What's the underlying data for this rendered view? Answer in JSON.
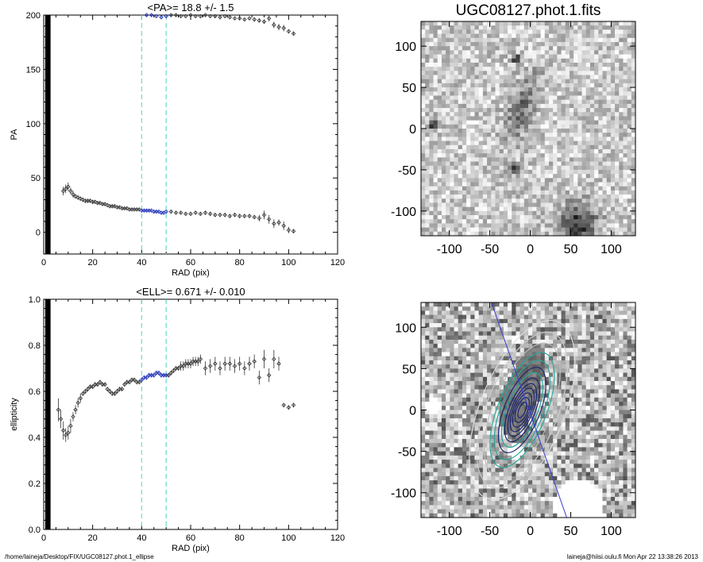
{
  "footer": {
    "path": "/home/laineja/Desktop/FIX/UGC08127.phot.1_ellipse",
    "user_time": "laineja@hiisi.oulu.fi  Mon Apr 22 13:38:26 2013"
  },
  "colors": {
    "axis": "#000000",
    "points": "#333333",
    "highlight": "#1f2fb8",
    "guide": "#66ddcc",
    "contour_teal": "#2aa59a",
    "contour_navy": "#1b2470",
    "pa_line": "#3a3ad0"
  },
  "chart_data": [
    {
      "type": "scatter",
      "title": "<PA>=  18.8 +/-   1.5",
      "xlabel": "RAD (pix)",
      "ylabel": "PA",
      "xlim": [
        0,
        120
      ],
      "ylim": [
        -20,
        200
      ],
      "xticks": [
        0,
        20,
        40,
        60,
        80,
        100,
        120
      ],
      "yticks": [
        0,
        50,
        100,
        150,
        200
      ],
      "guide_lines_x": [
        40,
        50
      ],
      "highlight_range_x": [
        40,
        50
      ],
      "series": [
        {
          "x": [
            8,
            9,
            10,
            11,
            12,
            13,
            14,
            15,
            16,
            17,
            18,
            19,
            20,
            21,
            22,
            23,
            24,
            25,
            26,
            27,
            28,
            29,
            30,
            31,
            32,
            33,
            34,
            35,
            36,
            37,
            38,
            39,
            40,
            41,
            42,
            43,
            44,
            45,
            46,
            47,
            48,
            49,
            50,
            52,
            54,
            56,
            58,
            60,
            62,
            64,
            66,
            68,
            70,
            72,
            74,
            76,
            78,
            80,
            82,
            84,
            86,
            88,
            90,
            92,
            94,
            96,
            98,
            100,
            102
          ],
          "y": [
            38,
            40,
            42,
            38,
            35,
            33,
            32,
            31,
            30,
            29,
            29,
            29,
            28,
            28,
            27,
            27,
            26,
            26,
            25,
            24,
            24,
            24,
            23,
            23,
            22,
            22,
            22,
            21,
            21,
            21,
            21,
            21,
            20,
            20,
            20,
            20,
            20,
            19,
            19,
            19,
            18,
            18,
            19,
            19,
            18,
            18,
            17,
            17,
            18,
            17,
            18,
            17,
            16,
            16,
            16,
            15,
            16,
            15,
            15,
            15,
            14,
            13,
            16,
            12,
            8,
            9,
            6,
            2,
            1
          ],
          "err": [
            4,
            4,
            4,
            3,
            3,
            2,
            2,
            2,
            2,
            2,
            2,
            2,
            2,
            1,
            1,
            1,
            1,
            1,
            1,
            1,
            1,
            1,
            1,
            1,
            1,
            1,
            1,
            1,
            1,
            1,
            1,
            1,
            1,
            1,
            1,
            1,
            1,
            1,
            1,
            1,
            1,
            1,
            1,
            1,
            1,
            1,
            1,
            1,
            1,
            1,
            2,
            2,
            2,
            2,
            2,
            2,
            2,
            2,
            2,
            2,
            2,
            3,
            4,
            4,
            4,
            3,
            4,
            3,
            2
          ]
        },
        {
          "x": [
            42,
            44,
            46,
            48,
            50,
            52,
            54,
            56,
            58,
            60,
            62,
            64,
            66,
            68,
            70,
            72,
            74,
            76,
            78,
            80,
            82,
            84,
            86,
            88,
            90,
            92,
            94,
            96,
            98,
            100,
            102
          ],
          "y": [
            200,
            200,
            199,
            198,
            199,
            200,
            200,
            199,
            199,
            200,
            199,
            199,
            200,
            199,
            199,
            198,
            199,
            198,
            197,
            197,
            196,
            197,
            196,
            195,
            194,
            197,
            191,
            189,
            188,
            185,
            183
          ],
          "err": [
            1,
            1,
            1,
            1,
            1,
            1,
            1,
            1,
            1,
            1,
            1,
            1,
            1,
            1,
            1,
            1,
            1,
            1,
            1,
            1,
            1,
            1,
            2,
            2,
            2,
            3,
            3,
            3,
            3,
            2,
            2
          ]
        }
      ]
    },
    {
      "type": "scatter",
      "title": "<ELL>= 0.671 +/-  0.010",
      "xlabel": "RAD (pix)",
      "ylabel": "ellipticity",
      "xlim": [
        0,
        120
      ],
      "ylim": [
        0,
        1
      ],
      "xticks": [
        0,
        20,
        40,
        60,
        80,
        100,
        120
      ],
      "yticks": [
        0.0,
        0.2,
        0.4,
        0.6,
        0.8,
        1.0
      ],
      "guide_lines_x": [
        40,
        50
      ],
      "highlight_range_x": [
        40,
        50
      ],
      "series": [
        {
          "x": [
            6,
            7,
            8,
            9,
            10,
            11,
            12,
            13,
            14,
            15,
            16,
            17,
            18,
            19,
            20,
            21,
            22,
            23,
            24,
            25,
            26,
            27,
            28,
            29,
            30,
            31,
            32,
            33,
            34,
            35,
            36,
            37,
            38,
            39,
            40,
            41,
            42,
            43,
            44,
            45,
            46,
            47,
            48,
            49,
            50,
            51,
            52,
            53,
            54,
            55,
            56,
            57,
            58,
            59,
            60,
            61,
            62,
            63,
            64,
            66,
            68,
            70,
            72,
            74,
            76,
            78,
            80,
            82,
            84,
            86,
            88,
            90,
            92,
            94,
            96,
            98,
            100,
            102
          ],
          "y": [
            0.52,
            0.48,
            0.43,
            0.41,
            0.42,
            0.45,
            0.49,
            0.52,
            0.55,
            0.57,
            0.59,
            0.6,
            0.61,
            0.62,
            0.62,
            0.63,
            0.63,
            0.64,
            0.63,
            0.63,
            0.61,
            0.6,
            0.59,
            0.59,
            0.6,
            0.61,
            0.61,
            0.63,
            0.64,
            0.64,
            0.65,
            0.65,
            0.64,
            0.64,
            0.65,
            0.66,
            0.66,
            0.67,
            0.67,
            0.67,
            0.68,
            0.68,
            0.67,
            0.67,
            0.67,
            0.67,
            0.68,
            0.69,
            0.7,
            0.7,
            0.71,
            0.71,
            0.72,
            0.72,
            0.72,
            0.73,
            0.73,
            0.73,
            0.74,
            0.7,
            0.71,
            0.72,
            0.7,
            0.72,
            0.72,
            0.71,
            0.72,
            0.7,
            0.72,
            0.73,
            0.66,
            0.74,
            0.67,
            0.74,
            0.72,
            0.54,
            0.53,
            0.54
          ],
          "err": [
            0.05,
            0.04,
            0.04,
            0.03,
            0.03,
            0.03,
            0.02,
            0.02,
            0.02,
            0.02,
            0.01,
            0.01,
            0.01,
            0.01,
            0.01,
            0.01,
            0.01,
            0.01,
            0.01,
            0.01,
            0.01,
            0.01,
            0.01,
            0.01,
            0.01,
            0.01,
            0.01,
            0.01,
            0.01,
            0.01,
            0.01,
            0.01,
            0.01,
            0.01,
            0.01,
            0.01,
            0.01,
            0.01,
            0.01,
            0.01,
            0.01,
            0.01,
            0.01,
            0.01,
            0.01,
            0.01,
            0.01,
            0.01,
            0.01,
            0.01,
            0.02,
            0.02,
            0.02,
            0.02,
            0.02,
            0.02,
            0.02,
            0.02,
            0.02,
            0.03,
            0.03,
            0.03,
            0.03,
            0.03,
            0.03,
            0.03,
            0.03,
            0.03,
            0.03,
            0.03,
            0.03,
            0.04,
            0.03,
            0.04,
            0.03,
            0.01,
            0.01,
            0.01
          ]
        }
      ]
    },
    {
      "type": "heatmap",
      "title": "UGC08127.phot.1.fits",
      "xlim": [
        -135,
        130
      ],
      "ylim": [
        -130,
        130
      ],
      "xticks": [
        -100,
        -50,
        0,
        50,
        100
      ],
      "yticks": [
        -100,
        -50,
        0,
        50,
        100
      ]
    },
    {
      "type": "heatmap",
      "title": "",
      "xlim": [
        -135,
        130
      ],
      "ylim": [
        -130,
        130
      ],
      "xticks": [
        -100,
        -50,
        0,
        50,
        100
      ],
      "yticks": [
        -100,
        -50,
        0,
        50,
        100
      ]
    }
  ]
}
